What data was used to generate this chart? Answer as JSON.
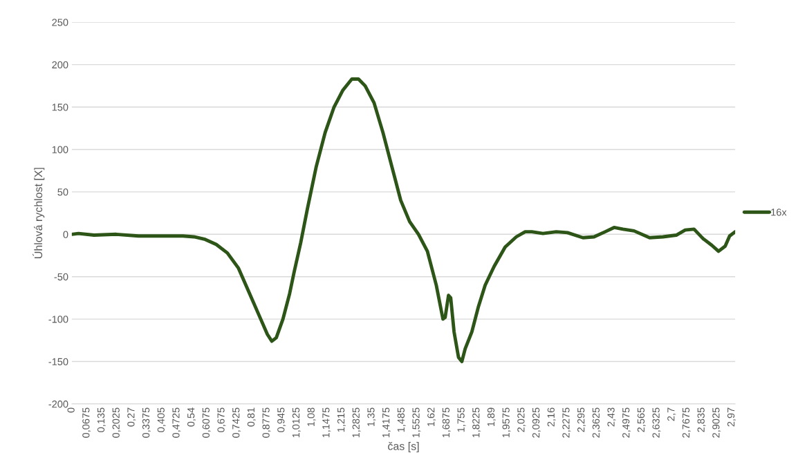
{
  "chart_data": {
    "type": "line",
    "xlabel": "čas [s]",
    "ylabel": "Úhlová rychlost [X]",
    "legend": "right",
    "grid": "y",
    "marker": "none",
    "line_style": "solid",
    "xlim": [
      0,
      2.985
    ],
    "ylim": [
      -200,
      250
    ],
    "yticks": [
      -200,
      -150,
      -100,
      -50,
      0,
      50,
      100,
      150,
      200,
      250
    ],
    "xticks": [
      {
        "value": 0,
        "label": "0"
      },
      {
        "value": 0.0675,
        "label": "0,0675"
      },
      {
        "value": 0.135,
        "label": "0,135"
      },
      {
        "value": 0.2025,
        "label": "0,2025"
      },
      {
        "value": 0.27,
        "label": "0,27"
      },
      {
        "value": 0.3375,
        "label": "0,3375"
      },
      {
        "value": 0.405,
        "label": "0,405"
      },
      {
        "value": 0.4725,
        "label": "0,4725"
      },
      {
        "value": 0.54,
        "label": "0,54"
      },
      {
        "value": 0.6075,
        "label": "0,6075"
      },
      {
        "value": 0.675,
        "label": "0,675"
      },
      {
        "value": 0.7425,
        "label": "0,7425"
      },
      {
        "value": 0.81,
        "label": "0,81"
      },
      {
        "value": 0.8775,
        "label": "0,8775"
      },
      {
        "value": 0.945,
        "label": "0,945"
      },
      {
        "value": 1.0125,
        "label": "1,0125"
      },
      {
        "value": 1.08,
        "label": "1,08"
      },
      {
        "value": 1.1475,
        "label": "1,1475"
      },
      {
        "value": 1.215,
        "label": "1,215"
      },
      {
        "value": 1.2825,
        "label": "1,2825"
      },
      {
        "value": 1.35,
        "label": "1,35"
      },
      {
        "value": 1.4175,
        "label": "1,4175"
      },
      {
        "value": 1.485,
        "label": "1,485"
      },
      {
        "value": 1.5525,
        "label": "1,5525"
      },
      {
        "value": 1.62,
        "label": "1,62"
      },
      {
        "value": 1.6875,
        "label": "1,6875"
      },
      {
        "value": 1.755,
        "label": "1,755"
      },
      {
        "value": 1.8225,
        "label": "1,8225"
      },
      {
        "value": 1.89,
        "label": "1,89"
      },
      {
        "value": 1.9575,
        "label": "1,9575"
      },
      {
        "value": 2.025,
        "label": "2,025"
      },
      {
        "value": 2.0925,
        "label": "2,0925"
      },
      {
        "value": 2.16,
        "label": "2,16"
      },
      {
        "value": 2.2275,
        "label": "2,2275"
      },
      {
        "value": 2.295,
        "label": "2,295"
      },
      {
        "value": 2.3625,
        "label": "2,3625"
      },
      {
        "value": 2.43,
        "label": "2,43"
      },
      {
        "value": 2.4975,
        "label": "2,4975"
      },
      {
        "value": 2.565,
        "label": "2,565"
      },
      {
        "value": 2.6325,
        "label": "2,6325"
      },
      {
        "value": 2.7,
        "label": "2,7"
      },
      {
        "value": 2.7675,
        "label": "2,7675"
      },
      {
        "value": 2.835,
        "label": "2,835"
      },
      {
        "value": 2.9025,
        "label": "2,9025"
      },
      {
        "value": 2.97,
        "label": "2,97"
      }
    ],
    "x": [
      0,
      0.03,
      0.1,
      0.2,
      0.3,
      0.4,
      0.5,
      0.55,
      0.6,
      0.65,
      0.7,
      0.75,
      0.8,
      0.85,
      0.88,
      0.9,
      0.92,
      0.95,
      0.98,
      1.0,
      1.03,
      1.06,
      1.1,
      1.14,
      1.18,
      1.22,
      1.26,
      1.29,
      1.32,
      1.36,
      1.4,
      1.44,
      1.48,
      1.52,
      1.56,
      1.6,
      1.64,
      1.67,
      1.68,
      1.695,
      1.705,
      1.72,
      1.74,
      1.755,
      1.77,
      1.8,
      1.83,
      1.86,
      1.9,
      1.95,
      2.0,
      2.04,
      2.07,
      2.12,
      2.18,
      2.23,
      2.3,
      2.35,
      2.4,
      2.44,
      2.48,
      2.53,
      2.6,
      2.66,
      2.72,
      2.76,
      2.8,
      2.84,
      2.88,
      2.91,
      2.94,
      2.96,
      2.985
    ],
    "series": [
      {
        "name": "16x",
        "color": "#2d5517",
        "values": [
          0,
          1,
          -1,
          0,
          -2,
          -2,
          -2,
          -3,
          -6,
          -12,
          -22,
          -40,
          -70,
          -100,
          -118,
          -126,
          -122,
          -100,
          -70,
          -45,
          -10,
          30,
          80,
          120,
          150,
          170,
          183,
          183,
          175,
          155,
          120,
          80,
          40,
          15,
          0,
          -20,
          -60,
          -100,
          -98,
          -72,
          -75,
          -115,
          -145,
          -150,
          -135,
          -115,
          -85,
          -60,
          -38,
          -15,
          -3,
          3,
          3,
          1,
          3,
          2,
          -4,
          -3,
          3,
          8,
          6,
          4,
          -4,
          -3,
          -1,
          5,
          6,
          -5,
          -13,
          -20,
          -14,
          -2,
          3
        ]
      }
    ]
  }
}
